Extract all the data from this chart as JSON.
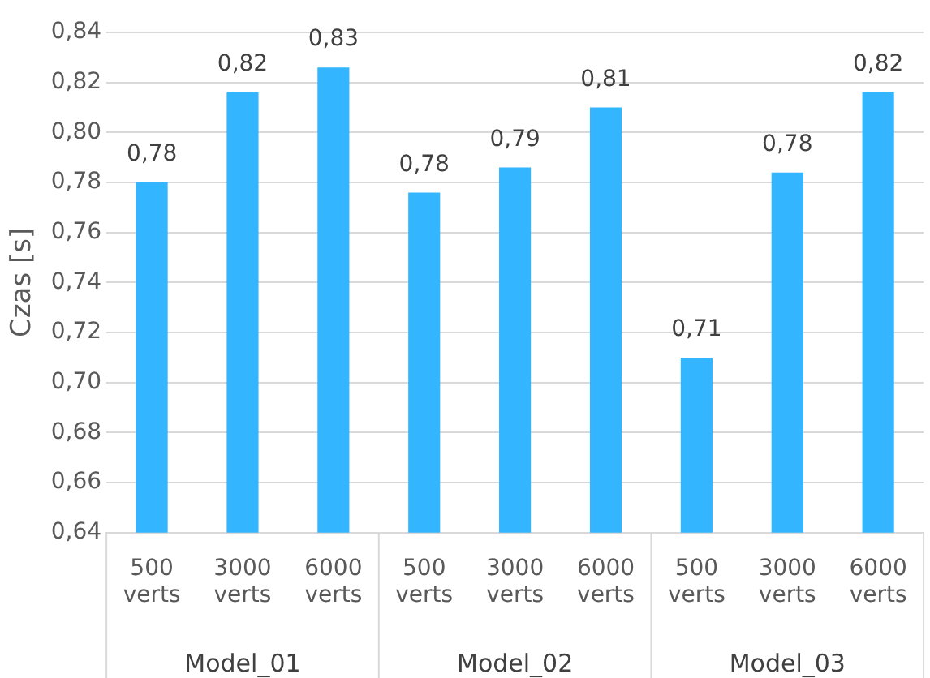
{
  "chart_data": {
    "type": "bar",
    "ylabel": "Czas [s]",
    "categories": [
      "500 verts",
      "3000 verts",
      "6000 verts",
      "500 verts",
      "3000 verts",
      "6000 verts",
      "500 verts",
      "3000 verts",
      "6000 verts"
    ],
    "values": [
      0.78,
      0.816,
      0.826,
      0.776,
      0.786,
      0.81,
      0.71,
      0.784,
      0.816
    ],
    "value_labels": [
      "0,78",
      "0,82",
      "0,83",
      "0,78",
      "0,79",
      "0,81",
      "0,71",
      "0,78",
      "0,82"
    ],
    "color": "#33b5ff",
    "annotations": [
      "Model_01",
      "Model_02",
      "Model_03"
    ],
    "ylim": [
      0.64,
      0.84
    ],
    "yticks": [
      {
        "value": 0.64,
        "label": "0,64"
      },
      {
        "value": 0.66,
        "label": "0,66"
      },
      {
        "value": 0.68,
        "label": "0,68"
      },
      {
        "value": 0.7,
        "label": "0,70"
      },
      {
        "value": 0.72,
        "label": "0,72"
      },
      {
        "value": 0.74,
        "label": "0,74"
      },
      {
        "value": 0.76,
        "label": "0,76"
      },
      {
        "value": 0.78,
        "label": "0,78"
      },
      {
        "value": 0.8,
        "label": "0,80"
      },
      {
        "value": 0.82,
        "label": "0,82"
      },
      {
        "value": 0.84,
        "label": "0,84"
      }
    ],
    "grid": "y",
    "legend": false
  }
}
